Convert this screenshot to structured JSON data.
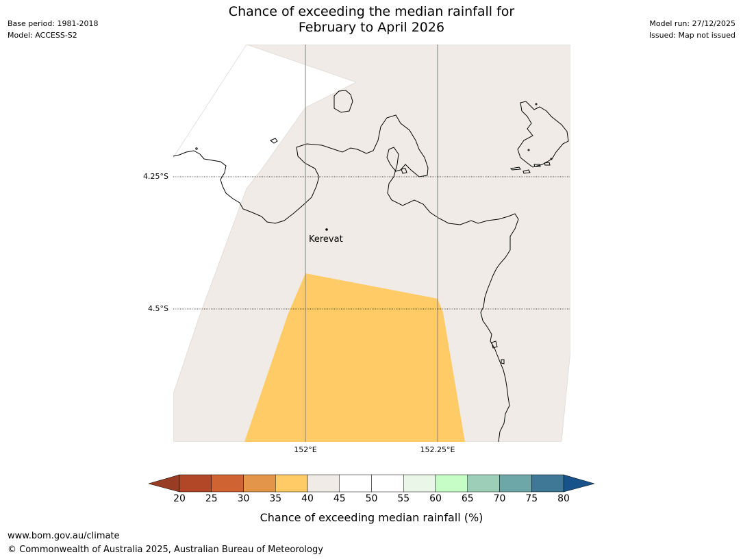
{
  "header": {
    "title_line1": "Chance of exceeding the median rainfall for",
    "title_line2": "February to April 2026",
    "base_period": "Base period: 1981-2018",
    "model": "Model: ACCESS-S2",
    "model_run": "Model run: 27/12/2025",
    "issued": "Issued: Map not issued"
  },
  "map": {
    "place_label": "Kerevat",
    "lat_labels": [
      "4.25°S",
      "4.5°S"
    ],
    "lon_labels": [
      "152°E",
      "152.25°E"
    ],
    "colors": {
      "land_outline": "#000000",
      "band_40_45": "#f0ebe6",
      "band_35_40": "#fecb66",
      "gridline": "#808080"
    }
  },
  "legend": {
    "title": "Chance of exceeding median rainfall (%)",
    "ticks": [
      "20",
      "25",
      "30",
      "35",
      "40",
      "45",
      "50",
      "55",
      "60",
      "65",
      "70",
      "75",
      "80"
    ],
    "colors": [
      "#b14726",
      "#cf6432",
      "#e3954a",
      "#fecb66",
      "#f0ebe6",
      "#ffffff",
      "#ffffff",
      "#eaf7e8",
      "#c6fdc7",
      "#9dcfb8",
      "#6ea7a7",
      "#3e7896"
    ],
    "under_color": "#993c24",
    "over_color": "#17538a"
  },
  "footer": {
    "url": "www.bom.gov.au/climate",
    "copyright": "© Commonwealth of Australia 2025, Australian Bureau of Meteorology"
  }
}
